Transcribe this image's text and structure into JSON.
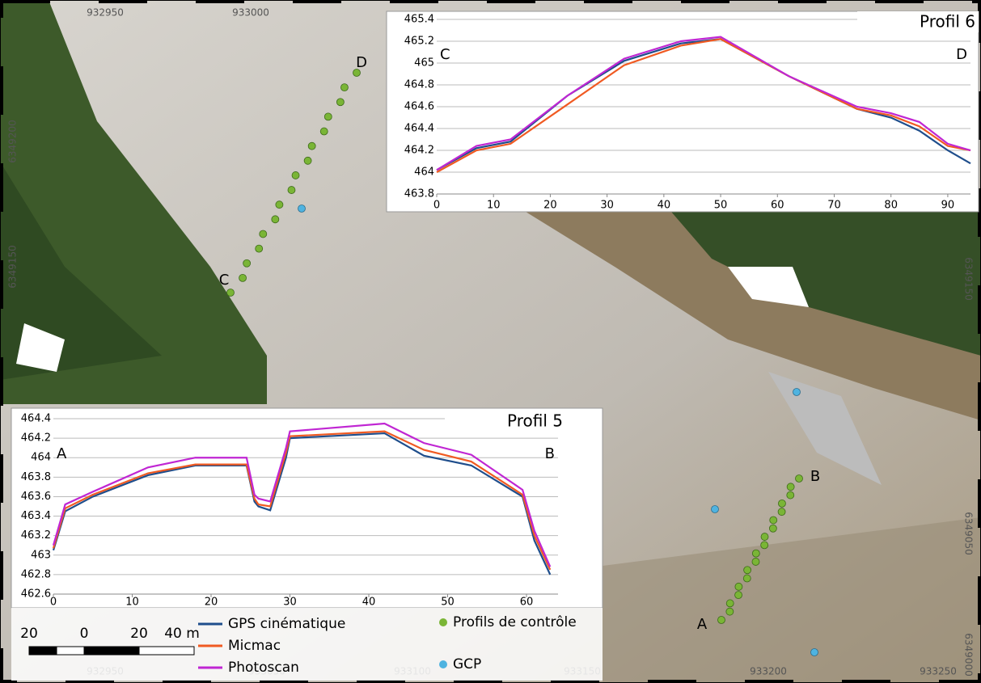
{
  "chart_data": [
    {
      "type": "line",
      "title": "Profil 6",
      "start_label": "C",
      "end_label": "D",
      "x": [
        0,
        7,
        13,
        23,
        33,
        43,
        50,
        62,
        74,
        80,
        85,
        90,
        94
      ],
      "series": [
        {
          "color": "#1f4e8c",
          "values": [
            464.02,
            464.22,
            464.28,
            464.7,
            465.02,
            465.18,
            465.22,
            464.88,
            464.58,
            464.5,
            464.38,
            464.2,
            464.08
          ]
        },
        {
          "color": "#f05a22",
          "values": [
            464.0,
            464.2,
            464.26,
            464.62,
            464.98,
            465.16,
            465.22,
            464.88,
            464.58,
            464.52,
            464.42,
            464.24,
            464.2
          ]
        },
        {
          "color": "#c026d3",
          "values": [
            464.02,
            464.24,
            464.3,
            464.7,
            465.04,
            465.2,
            465.24,
            464.88,
            464.6,
            464.54,
            464.46,
            464.26,
            464.2
          ]
        }
      ],
      "xlim": [
        0,
        94
      ],
      "xticks": [
        0,
        10,
        20,
        30,
        40,
        50,
        60,
        70,
        80,
        90
      ],
      "ylim": [
        463.8,
        465.4
      ],
      "yticks": [
        463.8,
        464,
        464.2,
        464.4,
        464.6,
        464.8,
        465,
        465.2,
        465.4
      ],
      "grid": true
    },
    {
      "type": "line",
      "title": "Profil 5",
      "start_label": "A",
      "end_label": "B",
      "x": [
        0,
        1.5,
        5,
        12,
        18,
        24.5,
        25.5,
        26,
        27.5,
        29.5,
        30,
        42,
        47,
        53,
        59.5,
        61,
        63
      ],
      "series": [
        {
          "color": "#1f4e8c",
          "values": [
            463.05,
            463.45,
            463.6,
            463.82,
            463.92,
            463.92,
            463.55,
            463.5,
            463.46,
            464.0,
            464.2,
            464.25,
            464.02,
            463.92,
            463.6,
            463.15,
            462.8
          ]
        },
        {
          "color": "#f05a22",
          "values": [
            463.07,
            463.48,
            463.62,
            463.84,
            463.93,
            463.93,
            463.58,
            463.52,
            463.5,
            464.05,
            464.22,
            464.27,
            464.08,
            463.96,
            463.62,
            463.2,
            462.85
          ]
        },
        {
          "color": "#c026d3",
          "values": [
            463.1,
            463.52,
            463.65,
            463.9,
            464.0,
            464.0,
            463.62,
            463.58,
            463.55,
            464.1,
            464.27,
            464.35,
            464.15,
            464.03,
            463.67,
            463.25,
            462.88
          ]
        }
      ],
      "xlim": [
        0,
        64
      ],
      "xticks": [
        0,
        10,
        20,
        30,
        40,
        50,
        60
      ],
      "ylim": [
        462.6,
        464.4
      ],
      "yticks": [
        462.6,
        462.8,
        463,
        463.2,
        463.4,
        463.6,
        463.8,
        464,
        464.2,
        464.4
      ],
      "grid": true
    }
  ],
  "map": {
    "coords_top": [
      "932950",
      "933000"
    ],
    "coords_bottom": [
      "932950",
      "933050",
      "933100",
      "933150",
      "933200",
      "933250"
    ],
    "coords_left": [
      "6349200",
      "6349150"
    ],
    "coords_right": [
      "6349150",
      "6349050",
      "6349000"
    ],
    "points": [
      "A",
      "B",
      "C",
      "D"
    ]
  },
  "legend": [
    {
      "label": "GPS cinématique",
      "color": "#1f4e8c"
    },
    {
      "label": "Micmac",
      "color": "#f05a22"
    },
    {
      "label": "Photoscan",
      "color": "#c026d3"
    },
    {
      "label": "Profils de contrôle",
      "color": "#7ab536"
    },
    {
      "label": "GCP",
      "color": "#4fb3e0"
    }
  ],
  "scale_bar": [
    "20",
    "0",
    "20",
    "40 m"
  ]
}
